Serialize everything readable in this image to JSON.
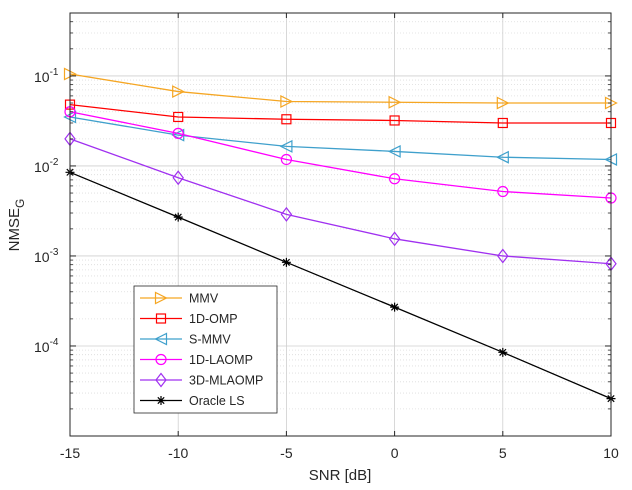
{
  "chart_data": {
    "type": "line",
    "title": "",
    "xlabel": "SNR [dB]",
    "ylabel_main": "NMSE",
    "ylabel_sub": "G",
    "x": [
      -15,
      -10,
      -5,
      0,
      5,
      10
    ],
    "xlim": [
      -15,
      10
    ],
    "ylim": [
      1e-05,
      0.5
    ],
    "yscale": "log",
    "grid": true,
    "legend_position": "bottom-left",
    "xticks": [
      -15,
      -10,
      -5,
      0,
      5,
      10
    ],
    "xtick_labels": [
      "-15",
      "-10",
      "-5",
      "0",
      "5",
      "10"
    ],
    "yticks": [
      {
        "value": 0.1,
        "base": "10",
        "exp": "-1"
      },
      {
        "value": 0.01,
        "base": "10",
        "exp": "-2"
      },
      {
        "value": 0.001,
        "base": "10",
        "exp": "-3"
      },
      {
        "value": 0.0001,
        "base": "10",
        "exp": "-4"
      }
    ],
    "series": [
      {
        "name": "MMV",
        "color": "#f5a623",
        "marker": "triangle-right",
        "values": [
          0.105,
          0.067,
          0.052,
          0.051,
          0.05,
          0.05
        ]
      },
      {
        "name": "1D-OMP",
        "color": "#ff0000",
        "marker": "square",
        "values": [
          0.048,
          0.035,
          0.033,
          0.032,
          0.03,
          0.03
        ]
      },
      {
        "name": "S-MMV",
        "color": "#3fa0cc",
        "marker": "triangle-left",
        "values": [
          0.035,
          0.022,
          0.0165,
          0.0145,
          0.0125,
          0.0118
        ]
      },
      {
        "name": "1D-LAOMP",
        "color": "#ff00ff",
        "marker": "circle",
        "values": [
          0.04,
          0.023,
          0.0118,
          0.0072,
          0.0052,
          0.0044
        ]
      },
      {
        "name": "3D-MLAOMP",
        "color": "#a030f0",
        "marker": "diamond",
        "values": [
          0.02,
          0.0074,
          0.0029,
          0.00155,
          0.001,
          0.00082
        ]
      },
      {
        "name": "Oracle LS",
        "color": "#000000",
        "marker": "asterisk",
        "values": [
          0.0085,
          0.0027,
          0.00085,
          0.00027,
          8.5e-05,
          2.6e-05
        ]
      }
    ]
  }
}
